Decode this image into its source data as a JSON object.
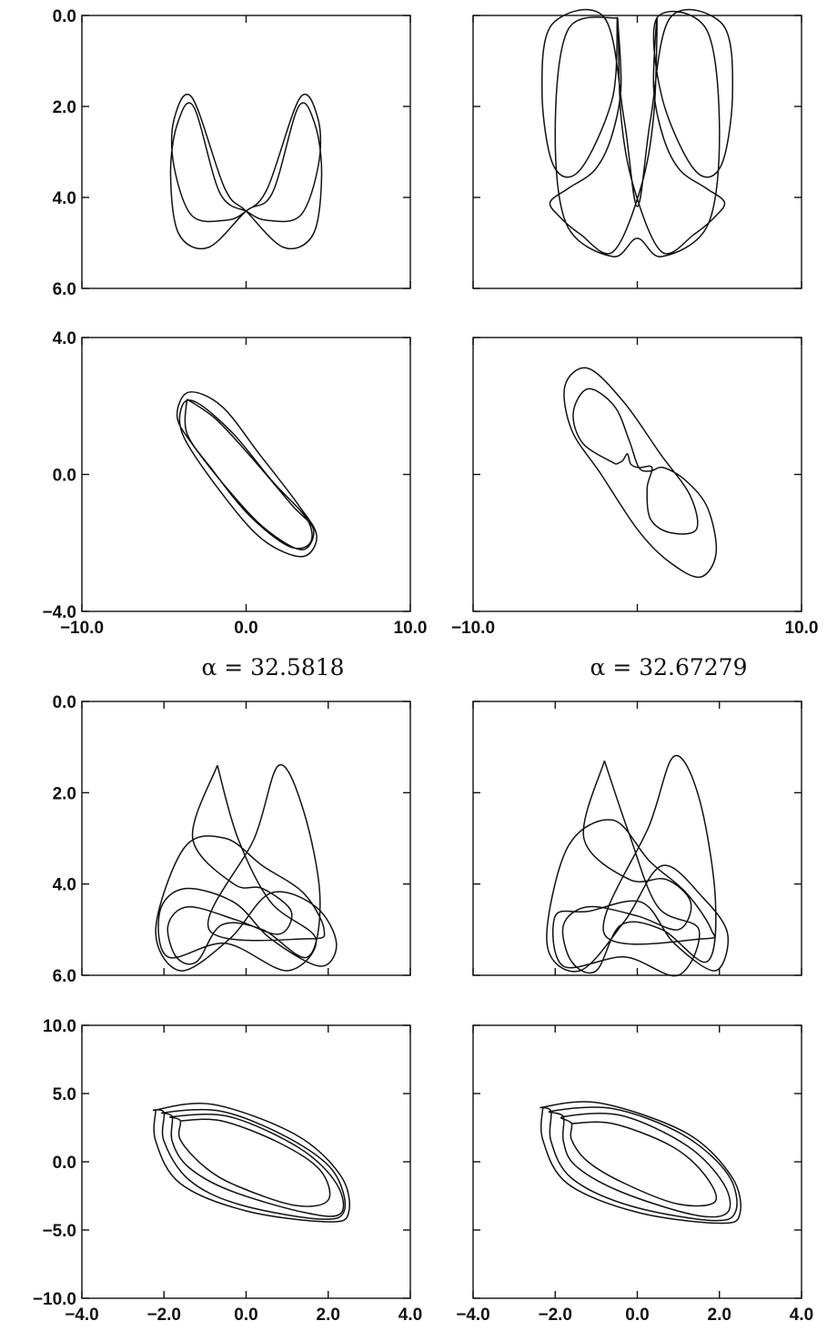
{
  "figure": {
    "alpha_labels": [
      "α = 32.5818",
      "α = 32.67279"
    ]
  },
  "chart_data": [
    {
      "type": "line",
      "panel": "top-group upper-left",
      "xlim": [
        -10,
        10
      ],
      "ylim": [
        0,
        6
      ],
      "y_inverted": true,
      "yticks": [
        0,
        2,
        4,
        6
      ],
      "ytick_labels": [
        "0.0",
        "2.0",
        "4.0",
        "6.0"
      ],
      "xticks": [
        -10,
        0,
        10
      ],
      "xtick_labels": [],
      "curve": [
        [
          0,
          4.3
        ],
        [
          -1.6,
          3.9
        ],
        [
          -3.2,
          2.0
        ],
        [
          -4.2,
          2.4
        ],
        [
          -4.6,
          3.5
        ],
        [
          -4.1,
          4.8
        ],
        [
          -2.3,
          5.1
        ],
        [
          0,
          4.3
        ],
        [
          1.6,
          3.9
        ],
        [
          3.2,
          2.0
        ],
        [
          4.2,
          2.4
        ],
        [
          4.6,
          3.5
        ],
        [
          4.1,
          4.8
        ],
        [
          2.3,
          5.1
        ],
        [
          0,
          4.3
        ],
        [
          -1.3,
          3.8
        ],
        [
          -3.3,
          1.8
        ],
        [
          -4.4,
          2.3
        ],
        [
          -4.4,
          3.3
        ],
        [
          -3.3,
          4.4
        ],
        [
          -1.2,
          4.5
        ],
        [
          0,
          4.3
        ],
        [
          1.3,
          3.8
        ],
        [
          3.3,
          1.8
        ],
        [
          4.4,
          2.3
        ],
        [
          4.4,
          3.3
        ],
        [
          3.3,
          4.4
        ],
        [
          1.2,
          4.5
        ],
        [
          0,
          4.3
        ]
      ]
    },
    {
      "type": "line",
      "panel": "top-group upper-right",
      "xlim": [
        -10,
        10
      ],
      "ylim": [
        0,
        6
      ],
      "y_inverted": true,
      "yticks": [
        0,
        2,
        4,
        6
      ],
      "ytick_labels": [],
      "xticks": [
        -10,
        0,
        10
      ],
      "xtick_labels": [],
      "curve": [
        [
          -1.2,
          0.05
        ],
        [
          -4.2,
          0.3
        ],
        [
          -5.0,
          2.5
        ],
        [
          -4.3,
          4.6
        ],
        [
          -1.5,
          5.3
        ],
        [
          0,
          4.9
        ],
        [
          1.5,
          5.3
        ],
        [
          4.3,
          4.6
        ],
        [
          5.0,
          2.5
        ],
        [
          4.2,
          0.3
        ],
        [
          1.2,
          0.05
        ],
        [
          1.5,
          1.8
        ],
        [
          3.5,
          3.4
        ],
        [
          5.1,
          3.3
        ],
        [
          5.8,
          1.7
        ],
        [
          5.2,
          0.2
        ],
        [
          2.0,
          0.05
        ],
        [
          0.8,
          2.3
        ],
        [
          0,
          4.2
        ],
        [
          -0.8,
          2.3
        ],
        [
          -2.0,
          0.05
        ],
        [
          -5.2,
          0.2
        ],
        [
          -5.8,
          1.7
        ],
        [
          -5.1,
          3.3
        ],
        [
          -3.5,
          3.4
        ],
        [
          -1.5,
          1.8
        ],
        [
          -1.2,
          0.05
        ],
        [
          -1.0,
          2.2
        ],
        [
          -0.2,
          3.8
        ],
        [
          1.5,
          5.2
        ],
        [
          3.5,
          4.8
        ],
        [
          4.8,
          4.4
        ],
        [
          5.3,
          4.1
        ],
        [
          4.2,
          3.8
        ],
        [
          2.6,
          3.4
        ],
        [
          1.6,
          2.7
        ],
        [
          1.0,
          1.6
        ],
        [
          1.2,
          0.05
        ],
        [
          1.0,
          2.2
        ],
        [
          0.2,
          3.8
        ],
        [
          -1.5,
          5.2
        ],
        [
          -3.5,
          4.8
        ],
        [
          -4.8,
          4.4
        ],
        [
          -5.3,
          4.1
        ],
        [
          -4.2,
          3.8
        ],
        [
          -2.6,
          3.4
        ],
        [
          -1.6,
          2.7
        ],
        [
          -1.0,
          1.6
        ],
        [
          -1.2,
          0.05
        ]
      ]
    },
    {
      "type": "line",
      "panel": "top-group lower-left",
      "xlim": [
        -10,
        10
      ],
      "ylim": [
        -4,
        4
      ],
      "yticks": [
        -4,
        0,
        4
      ],
      "ytick_labels": [
        "-4.0",
        "0.0",
        "4.0"
      ],
      "xticks": [
        -10,
        0,
        10
      ],
      "xtick_labels": [
        "-10.0",
        "0.0",
        "10.0"
      ],
      "curve": [
        [
          -3.6,
          2.2
        ],
        [
          -1.8,
          1.6
        ],
        [
          0.5,
          0.4
        ],
        [
          2.8,
          -0.9
        ],
        [
          4.1,
          -1.6
        ],
        [
          3.4,
          -2.2
        ],
        [
          1.2,
          -1.6
        ],
        [
          -1.0,
          -0.5
        ],
        [
          -3.3,
          0.9
        ],
        [
          -4.2,
          1.7
        ],
        [
          -3.5,
          2.4
        ],
        [
          -1.5,
          2.0
        ],
        [
          0.8,
          0.6
        ],
        [
          3.2,
          -0.9
        ],
        [
          4.3,
          -1.8
        ],
        [
          3.4,
          -2.4
        ],
        [
          1.0,
          -1.9
        ],
        [
          -1.4,
          -0.6
        ],
        [
          -3.8,
          1.1
        ],
        [
          -3.9,
          2.0
        ],
        [
          -3.0,
          2.1
        ],
        [
          -0.8,
          1.2
        ],
        [
          1.6,
          -0.2
        ],
        [
          3.7,
          -1.3
        ],
        [
          3.9,
          -2.0
        ],
        [
          2.6,
          -2.1
        ],
        [
          0.2,
          -1.2
        ],
        [
          -2.0,
          0.1
        ],
        [
          -3.6,
          1.2
        ],
        [
          -3.6,
          2.2
        ]
      ]
    },
    {
      "type": "line",
      "panel": "top-group lower-right",
      "xlim": [
        -10,
        10
      ],
      "ylim": [
        -4,
        4
      ],
      "yticks": [
        -4,
        0,
        4
      ],
      "ytick_labels": [],
      "xticks": [
        -10,
        0,
        10
      ],
      "xtick_labels": [
        "-10.0",
        "",
        "10.0"
      ],
      "curve": [
        [
          -1.3,
          0.3
        ],
        [
          -3.3,
          0.9
        ],
        [
          -3.9,
          1.8
        ],
        [
          -3.0,
          2.5
        ],
        [
          -1.4,
          2.0
        ],
        [
          -0.5,
          1.0
        ],
        [
          0.1,
          0.2
        ],
        [
          0.8,
          0.1
        ],
        [
          1.6,
          0.2
        ],
        [
          3.0,
          -0.2
        ],
        [
          4.3,
          -1.0
        ],
        [
          4.8,
          -2.3
        ],
        [
          3.8,
          -3.0
        ],
        [
          1.8,
          -2.5
        ],
        [
          0,
          -1.6
        ],
        [
          -2.2,
          0.0
        ],
        [
          -4.0,
          1.3
        ],
        [
          -4.4,
          2.6
        ],
        [
          -3.0,
          3.1
        ],
        [
          -0.8,
          2.1
        ],
        [
          1.4,
          0.6
        ],
        [
          3.2,
          -0.6
        ],
        [
          3.6,
          -1.6
        ],
        [
          2.0,
          -1.7
        ],
        [
          0.8,
          -1.3
        ],
        [
          0.6,
          -0.4
        ],
        [
          0.9,
          0.2
        ],
        [
          0.1,
          0.2
        ],
        [
          -0.4,
          0.3
        ],
        [
          -0.6,
          0.6
        ],
        [
          -0.9,
          0.4
        ],
        [
          -1.3,
          0.3
        ]
      ]
    },
    {
      "type": "line",
      "panel": "bottom-group upper-left",
      "xlim": [
        -4,
        4
      ],
      "ylim": [
        0,
        6
      ],
      "y_inverted": true,
      "yticks": [
        0,
        2,
        4,
        6
      ],
      "ytick_labels": [
        "0.0",
        "2.0",
        "4.0",
        "6.0"
      ],
      "xticks": [
        -4,
        -2,
        0,
        2,
        4
      ],
      "xtick_labels": [],
      "curve": [
        [
          -0.7,
          1.4
        ],
        [
          -0.2,
          3.0
        ],
        [
          0.6,
          4.4
        ],
        [
          1.7,
          5.2
        ],
        [
          1.0,
          5.9
        ],
        [
          -0.5,
          5.3
        ],
        [
          -1.9,
          5.6
        ],
        [
          -2.1,
          4.6
        ],
        [
          -1.5,
          4.1
        ],
        [
          -0.3,
          4.4
        ],
        [
          0.6,
          5.2
        ],
        [
          1.8,
          5.8
        ],
        [
          2.2,
          5.3
        ],
        [
          1.7,
          4.5
        ],
        [
          0.6,
          4.2
        ],
        [
          -0.4,
          5.2
        ],
        [
          -1.6,
          5.9
        ],
        [
          -2.2,
          5.0
        ],
        [
          -1.5,
          3.2
        ],
        [
          -0.5,
          3.0
        ],
        [
          0.4,
          3.6
        ],
        [
          1.4,
          4.2
        ],
        [
          1.9,
          5.0
        ],
        [
          1.5,
          5.2
        ],
        [
          -0.9,
          5.0
        ],
        [
          0.2,
          3.0
        ],
        [
          0.8,
          1.4
        ],
        [
          1.4,
          2.4
        ],
        [
          1.8,
          4.3
        ],
        [
          1.5,
          5.6
        ],
        [
          0.4,
          5.0
        ],
        [
          -0.6,
          4.9
        ],
        [
          -1.2,
          5.7
        ],
        [
          -1.7,
          5.6
        ],
        [
          -1.9,
          4.9
        ],
        [
          -1.4,
          4.5
        ],
        [
          -0.2,
          4.8
        ],
        [
          0.8,
          5.1
        ],
        [
          1.1,
          4.6
        ],
        [
          0.4,
          4.1
        ],
        [
          -0.3,
          4.0
        ],
        [
          -1.3,
          3.0
        ],
        [
          -0.7,
          1.4
        ]
      ]
    },
    {
      "type": "line",
      "panel": "bottom-group upper-right",
      "xlim": [
        -4,
        4
      ],
      "ylim": [
        0,
        6
      ],
      "y_inverted": true,
      "yticks": [
        0,
        2,
        4,
        6
      ],
      "ytick_labels": [],
      "xticks": [
        -4,
        -2,
        0,
        2,
        4
      ],
      "xtick_labels": [],
      "curve": [
        [
          -0.8,
          1.3
        ],
        [
          -0.2,
          2.9
        ],
        [
          0.5,
          4.5
        ],
        [
          1.5,
          5.0
        ],
        [
          1.0,
          6.0
        ],
        [
          -0.3,
          5.6
        ],
        [
          -1.8,
          5.8
        ],
        [
          -2.0,
          4.7
        ],
        [
          -1.2,
          4.6
        ],
        [
          0.1,
          4.4
        ],
        [
          0.9,
          5.3
        ],
        [
          1.9,
          5.9
        ],
        [
          2.2,
          5.1
        ],
        [
          1.6,
          4.3
        ],
        [
          0.6,
          3.6
        ],
        [
          -0.3,
          4.8
        ],
        [
          -1.4,
          5.9
        ],
        [
          -2.2,
          5.3
        ],
        [
          -1.7,
          3.2
        ],
        [
          -0.6,
          2.6
        ],
        [
          0.3,
          3.5
        ],
        [
          1.2,
          4.2
        ],
        [
          1.8,
          5.0
        ],
        [
          1.6,
          5.2
        ],
        [
          -0.8,
          5.1
        ],
        [
          0.3,
          2.7
        ],
        [
          0.9,
          1.2
        ],
        [
          1.5,
          2.1
        ],
        [
          1.9,
          4.3
        ],
        [
          1.7,
          5.7
        ],
        [
          0.6,
          5.0
        ],
        [
          -0.4,
          4.9
        ],
        [
          -1.0,
          5.9
        ],
        [
          -1.6,
          5.7
        ],
        [
          -1.8,
          4.9
        ],
        [
          -1.2,
          4.5
        ],
        [
          0.0,
          4.7
        ],
        [
          1.0,
          5.0
        ],
        [
          1.3,
          4.4
        ],
        [
          0.7,
          3.9
        ],
        [
          -0.2,
          3.9
        ],
        [
          -1.3,
          3.0
        ],
        [
          -0.8,
          1.3
        ]
      ]
    },
    {
      "type": "line",
      "panel": "bottom-group lower-left",
      "xlim": [
        -4,
        4
      ],
      "ylim": [
        -10,
        10
      ],
      "yticks": [
        -10,
        -5,
        0,
        5,
        10
      ],
      "ytick_labels": [
        "-10.0",
        "-5.0",
        "0.0",
        "5.0",
        "10.0"
      ],
      "xticks": [
        -4,
        -2,
        0,
        2,
        4
      ],
      "xtick_labels": [
        "-4.0",
        "-2.0",
        "0.0",
        "2.0",
        "4.0"
      ],
      "curve": [
        [
          -1.6,
          3.0
        ],
        [
          -0.6,
          3.0
        ],
        [
          0.8,
          1.4
        ],
        [
          1.8,
          -0.6
        ],
        [
          2.0,
          -2.8
        ],
        [
          1.2,
          -3.2
        ],
        [
          -0.2,
          -1.8
        ],
        [
          -1.0,
          -0.4
        ],
        [
          -1.6,
          1.6
        ],
        [
          -1.6,
          3.0
        ],
        [
          -1.8,
          3.3
        ],
        [
          -0.4,
          3.3
        ],
        [
          1.3,
          1.0
        ],
        [
          2.2,
          -1.6
        ],
        [
          2.3,
          -3.8
        ],
        [
          1.4,
          -3.7
        ],
        [
          -0.4,
          -2.1
        ],
        [
          -1.4,
          -0.4
        ],
        [
          -1.8,
          1.5
        ],
        [
          -1.8,
          3.3
        ],
        [
          -2.0,
          3.6
        ],
        [
          -0.6,
          3.7
        ],
        [
          1.0,
          1.8
        ],
        [
          2.1,
          -0.6
        ],
        [
          2.4,
          -3.5
        ],
        [
          1.8,
          -4.2
        ],
        [
          -0.2,
          -3.1
        ],
        [
          -1.4,
          -1.3
        ],
        [
          -2.0,
          1.5
        ],
        [
          -2.0,
          3.6
        ],
        [
          -2.2,
          3.8
        ],
        [
          -0.8,
          4.2
        ],
        [
          1.2,
          2.0
        ],
        [
          2.3,
          -1.0
        ],
        [
          2.5,
          -3.7
        ],
        [
          2.0,
          -4.4
        ],
        [
          0.0,
          -3.6
        ],
        [
          -1.6,
          -1.6
        ],
        [
          -2.2,
          1.5
        ],
        [
          -2.2,
          3.8
        ]
      ]
    },
    {
      "type": "line",
      "panel": "bottom-group lower-right",
      "xlim": [
        -4,
        4
      ],
      "ylim": [
        -10,
        10
      ],
      "yticks": [
        -10,
        -5,
        0,
        5,
        10
      ],
      "ytick_labels": [],
      "xticks": [
        -4,
        -2,
        0,
        2,
        4
      ],
      "xtick_labels": [
        "-4.0",
        "-2.0",
        "0.0",
        "2.0",
        "4.0"
      ],
      "curve": [
        [
          -1.6,
          2.8
        ],
        [
          -0.6,
          2.8
        ],
        [
          0.8,
          1.2
        ],
        [
          1.6,
          -0.8
        ],
        [
          1.9,
          -2.9
        ],
        [
          1.0,
          -3.1
        ],
        [
          -0.3,
          -1.6
        ],
        [
          -1.2,
          0.0
        ],
        [
          -1.6,
          1.6
        ],
        [
          -1.6,
          2.8
        ],
        [
          -1.8,
          3.3
        ],
        [
          -0.4,
          3.4
        ],
        [
          1.2,
          1.2
        ],
        [
          2.1,
          -1.6
        ],
        [
          2.2,
          -3.7
        ],
        [
          1.4,
          -3.9
        ],
        [
          -0.4,
          -2.2
        ],
        [
          -1.5,
          -0.3
        ],
        [
          -1.8,
          1.5
        ],
        [
          -1.8,
          3.3
        ],
        [
          -2.1,
          3.7
        ],
        [
          -0.6,
          3.9
        ],
        [
          1.1,
          2.0
        ],
        [
          2.2,
          -0.9
        ],
        [
          2.4,
          -3.6
        ],
        [
          1.8,
          -4.3
        ],
        [
          -0.2,
          -3.2
        ],
        [
          -1.6,
          -1.2
        ],
        [
          -2.1,
          1.5
        ],
        [
          -2.1,
          3.7
        ],
        [
          -2.3,
          4.0
        ],
        [
          -0.9,
          4.3
        ],
        [
          1.2,
          2.1
        ],
        [
          2.3,
          -1.1
        ],
        [
          2.5,
          -3.8
        ],
        [
          2.0,
          -4.5
        ],
        [
          0.0,
          -3.7
        ],
        [
          -1.7,
          -1.6
        ],
        [
          -2.3,
          1.6
        ],
        [
          -2.3,
          4.0
        ]
      ]
    }
  ]
}
